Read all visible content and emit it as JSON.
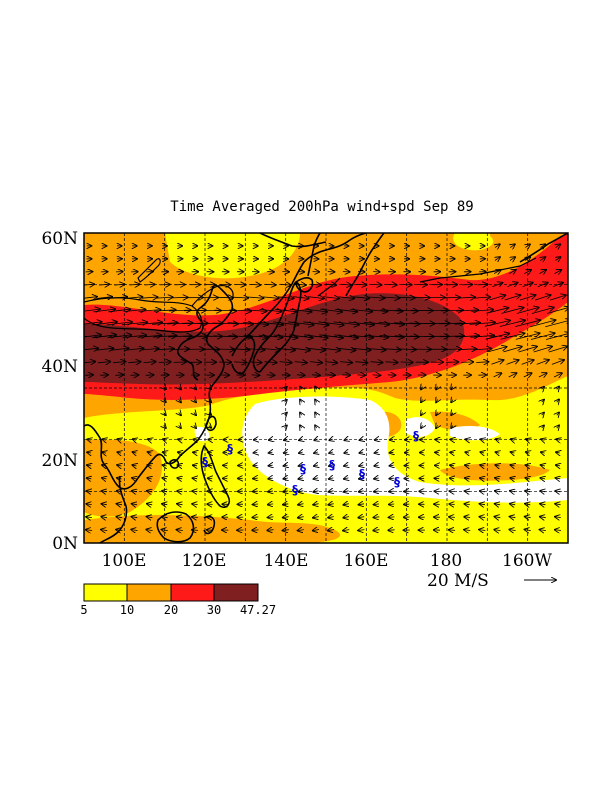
{
  "title": "Time Averaged 200hPa wind+spd  Sep 89",
  "lat_labels": [
    "60N",
    "40N",
    "20N",
    "0N"
  ],
  "lon_labels": [
    "100E",
    "120E",
    "140E",
    "160E",
    "180",
    "160W"
  ],
  "vector_reference": "20 M/S",
  "colorbar": {
    "labels": [
      "5",
      "10",
      "20",
      "30",
      "47.27"
    ],
    "colors": [
      "#ffff00",
      "#ffa500",
      "#ff1a1a",
      "#7f1f1f"
    ]
  },
  "colors": {
    "below_5": "#ffffff",
    "coastline": "#000000",
    "gridline": "#000000",
    "typhoon_symbol": "#0000dd"
  },
  "map": {
    "projection": "latitude-longitude",
    "lon_range": [
      90,
      210
    ],
    "lat_range": [
      0,
      60
    ],
    "field": "200hPa wind speed (shaded) and wind vectors",
    "typhoon_symbols": 8
  }
}
